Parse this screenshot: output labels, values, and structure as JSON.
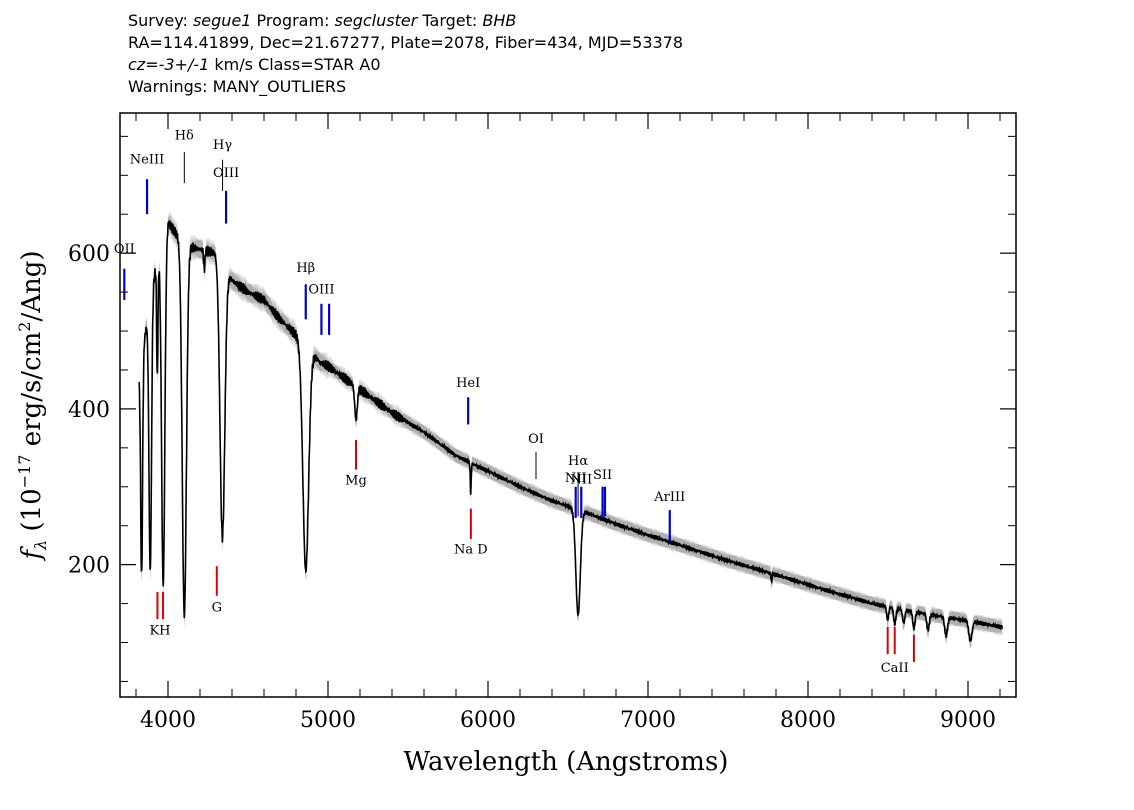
{
  "header": {
    "line1": {
      "survey_label": "Survey: ",
      "survey": "segue1",
      "program_label": " Program: ",
      "program": "segcluster",
      "target_label": " Target: ",
      "target": "BHB"
    },
    "line2": "RA=114.41899, Dec=21.67277, Plate=2078, Fiber=434, MJD=53378",
    "line3": {
      "cz": "cz=-3+/-1",
      "rest": " km/s Class=STAR A0"
    },
    "line4": "Warnings: MANY_OUTLIERS"
  },
  "chart_data": {
    "type": "line",
    "xlabel": "Wavelength (Angstroms)",
    "ylabel": "f_λ (10^-17 erg/s/cm^2/Ang)",
    "ylabel_parts": {
      "f": "f",
      "sub": "λ",
      "a": " (10",
      "exp1": "−17",
      "b": " erg/s/cm",
      "exp2": "2",
      "c": "/Ang)"
    },
    "xlim": [
      3700,
      9300
    ],
    "ylim": [
      30,
      780
    ],
    "xticks": [
      4000,
      5000,
      6000,
      7000,
      8000,
      9000
    ],
    "yticks": [
      200,
      400,
      600
    ],
    "colors": {
      "spectrum": "#000000",
      "error_band": "#b0b0b0",
      "emission": "#0000cc",
      "absorption": "#dd0000"
    },
    "continuum": [
      [
        3820,
        440
      ],
      [
        3900,
        560
      ],
      [
        4000,
        640
      ],
      [
        4100,
        610
      ],
      [
        4200,
        605
      ],
      [
        4300,
        600
      ],
      [
        4400,
        565
      ],
      [
        4500,
        550
      ],
      [
        4600,
        540
      ],
      [
        4700,
        515
      ],
      [
        4800,
        495
      ],
      [
        4950,
        460
      ],
      [
        5000,
        455
      ],
      [
        5200,
        425
      ],
      [
        5400,
        395
      ],
      [
        5600,
        370
      ],
      [
        5800,
        340
      ],
      [
        6000,
        320
      ],
      [
        6200,
        300
      ],
      [
        6400,
        282
      ],
      [
        6600,
        268
      ],
      [
        6800,
        252
      ],
      [
        7000,
        238
      ],
      [
        7200,
        225
      ],
      [
        7500,
        205
      ],
      [
        7800,
        187
      ],
      [
        8100,
        168
      ],
      [
        8400,
        150
      ],
      [
        8700,
        138
      ],
      [
        9000,
        128
      ],
      [
        9200,
        120
      ]
    ],
    "absorption_features": [
      {
        "center": 3798,
        "depth": 0.55,
        "width": 5
      },
      {
        "center": 3835,
        "depth": 0.6,
        "width": 6
      },
      {
        "center": 3889,
        "depth": 0.65,
        "width": 8
      },
      {
        "center": 3933,
        "depth": 0.25,
        "width": 4
      },
      {
        "center": 3970,
        "depth": 0.72,
        "width": 10
      },
      {
        "center": 4102,
        "depth": 0.78,
        "width": 13
      },
      {
        "center": 4227,
        "depth": 0.04,
        "width": 4
      },
      {
        "center": 4340,
        "depth": 0.6,
        "width": 15
      },
      {
        "center": 4861,
        "depth": 0.6,
        "width": 18
      },
      {
        "center": 5175,
        "depth": 0.1,
        "width": 8
      },
      {
        "center": 5892,
        "depth": 0.12,
        "width": 3
      },
      {
        "center": 6563,
        "depth": 0.5,
        "width": 14
      },
      {
        "center": 7772,
        "depth": 0.06,
        "width": 3
      },
      {
        "center": 8498,
        "depth": 0.12,
        "width": 6
      },
      {
        "center": 8542,
        "depth": 0.14,
        "width": 7
      },
      {
        "center": 8598,
        "depth": 0.12,
        "width": 7
      },
      {
        "center": 8662,
        "depth": 0.15,
        "width": 7
      },
      {
        "center": 8750,
        "depth": 0.15,
        "width": 8
      },
      {
        "center": 8863,
        "depth": 0.18,
        "width": 9
      },
      {
        "center": 9015,
        "depth": 0.2,
        "width": 10
      }
    ],
    "emission_lines": [
      {
        "label": "OII",
        "wavelength": 3727,
        "y1": 540,
        "y2": 580,
        "label_y": 600
      },
      {
        "label": "NeIII",
        "wavelength": 3869,
        "y1": 650,
        "y2": 695,
        "label_y": 715
      },
      {
        "label": "Hδ",
        "wavelength": 4102,
        "y1": 690,
        "y2": 730,
        "label_y": 746,
        "thin": true
      },
      {
        "label": "Hγ",
        "wavelength": 4341,
        "y1": 680,
        "y2": 720,
        "label_y": 734,
        "thin": true
      },
      {
        "label": "OIII",
        "wavelength": 4363,
        "y1": 638,
        "y2": 680,
        "label_y": 698
      },
      {
        "label": "Hβ",
        "wavelength": 4861,
        "y1": 515,
        "y2": 560,
        "label_y": 576
      },
      {
        "label": "OIII",
        "wavelength": 4959,
        "y1": 495,
        "y2": 535,
        "label_y": 548
      },
      {
        "label": "",
        "wavelength": 5007,
        "y1": 495,
        "y2": 535
      },
      {
        "label": "HeI",
        "wavelength": 5876,
        "y1": 380,
        "y2": 415,
        "label_y": 428
      },
      {
        "label": "OI",
        "wavelength": 6300,
        "y1": 310,
        "y2": 345,
        "label_y": 356,
        "thin": true
      },
      {
        "label": "NII",
        "wavelength": 6548,
        "y1": 260,
        "y2": 300,
        "label_y": 306
      },
      {
        "label": "Hα",
        "wavelength": 6563,
        "y1": 262,
        "y2": 318,
        "label_y": 328,
        "thin": true
      },
      {
        "label": "NII",
        "wavelength": 6583,
        "y1": 260,
        "y2": 300,
        "label_y": 304
      },
      {
        "label": "SII",
        "wavelength": 6716,
        "y1": 262,
        "y2": 300,
        "label_y": 310
      },
      {
        "label": "",
        "wavelength": 6731,
        "y1": 262,
        "y2": 300
      },
      {
        "label": "ArIII",
        "wavelength": 7136,
        "y1": 230,
        "y2": 270,
        "label_y": 282
      }
    ],
    "absorption_lines": [
      {
        "label": "K",
        "wavelength": 3934,
        "y1": 130,
        "y2": 165
      },
      {
        "label": "H",
        "wavelength": 3969,
        "y1": 130,
        "y2": 165
      },
      {
        "label": "KH",
        "wavelength": 3950,
        "label_y": 110
      },
      {
        "label": "G",
        "wavelength": 4305,
        "y1": 160,
        "y2": 198,
        "label_y": 140
      },
      {
        "label": "Mg",
        "wavelength": 5175,
        "y1": 322,
        "y2": 360,
        "label_y": 303
      },
      {
        "label": "Na D",
        "wavelength": 5893,
        "y1": 233,
        "y2": 272,
        "label_y": 214
      },
      {
        "label": "CaII",
        "wavelength": 8498,
        "y1": 85,
        "y2": 120
      },
      {
        "label": "",
        "wavelength": 8542,
        "y1": 85,
        "y2": 120
      },
      {
        "label": "",
        "wavelength": 8662,
        "y1": 75,
        "y2": 110
      },
      {
        "label": "CaII",
        "wavelength": 8542,
        "label_y": 62,
        "label_only": true
      }
    ]
  }
}
